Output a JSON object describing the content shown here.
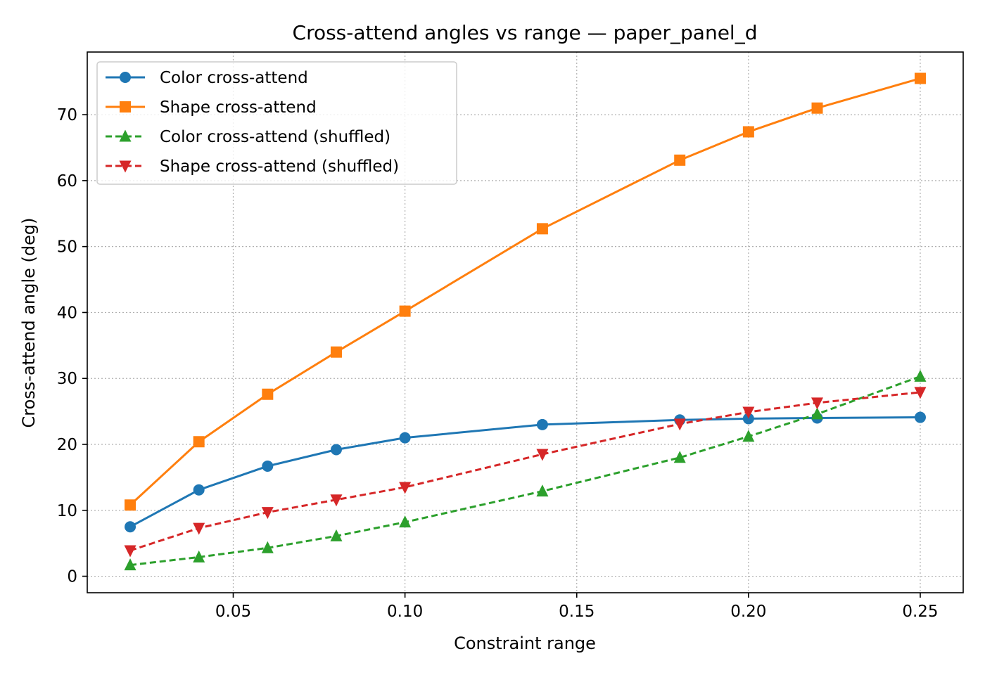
{
  "chart_data": {
    "type": "line",
    "title": "Cross-attend angles vs range — paper_panel_d",
    "xlabel": "Constraint range",
    "ylabel": "Cross-attend angle (deg)",
    "xlim": [
      0.0075,
      0.2625
    ],
    "ylim": [
      -2.5,
      79.5
    ],
    "xticks": [
      0.05,
      0.1,
      0.15,
      0.2,
      0.25
    ],
    "xtick_labels": [
      "0.05",
      "0.10",
      "0.15",
      "0.20",
      "0.25"
    ],
    "yticks": [
      0,
      10,
      20,
      30,
      40,
      50,
      60,
      70
    ],
    "ytick_labels": [
      "0",
      "10",
      "20",
      "30",
      "40",
      "50",
      "60",
      "70"
    ],
    "grid": true,
    "legend_position": "top-left",
    "x": [
      0.02,
      0.04,
      0.06,
      0.08,
      0.1,
      0.14,
      0.18,
      0.2,
      0.22,
      0.25
    ],
    "series": [
      {
        "name": "Color cross-attend",
        "values": [
          7.5,
          13.1,
          16.7,
          19.2,
          21.0,
          23.0,
          23.7,
          23.9,
          24.0,
          24.1
        ],
        "color": "#1f77b4",
        "marker": "circle",
        "line_style": "solid"
      },
      {
        "name": "Shape cross-attend",
        "values": [
          10.8,
          20.4,
          27.6,
          34.0,
          40.2,
          52.7,
          63.1,
          67.4,
          71.0,
          75.5
        ],
        "color": "#ff7f0e",
        "marker": "square",
        "line_style": "solid"
      },
      {
        "name": "Color cross-attend (shuffled)",
        "values": [
          1.7,
          2.9,
          4.3,
          6.1,
          8.2,
          12.9,
          18.0,
          21.2,
          24.6,
          30.3
        ],
        "color": "#2ca02c",
        "marker": "triangle-up",
        "line_style": "dashed"
      },
      {
        "name": "Shape cross-attend (shuffled)",
        "values": [
          3.9,
          7.3,
          9.7,
          11.6,
          13.5,
          18.5,
          23.1,
          24.9,
          26.3,
          27.9
        ],
        "color": "#d62728",
        "marker": "triangle-down",
        "line_style": "dashed"
      }
    ]
  }
}
